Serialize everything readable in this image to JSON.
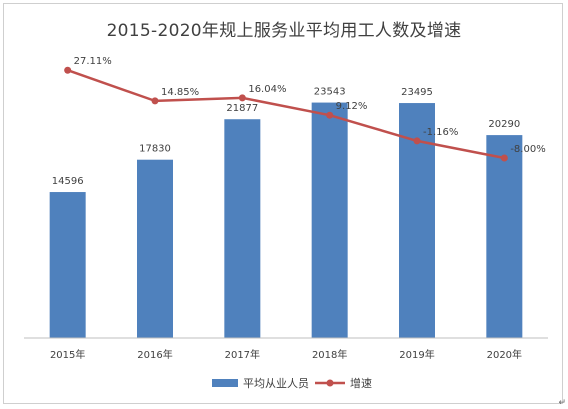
{
  "chart_data": {
    "type": "bar",
    "title": "2015-2020年规上服务业平均用工人数及增速",
    "categories": [
      "2015年",
      "2016年",
      "2017年",
      "2018年",
      "2019年",
      "2020年"
    ],
    "series": [
      {
        "name": "平均从业人员",
        "type": "bar",
        "values": [
          14596,
          17830,
          21877,
          23543,
          23495,
          20290
        ],
        "labels": [
          "14596",
          "17830",
          "21877",
          "23543",
          "23495",
          "20290"
        ],
        "color": "#4f81bd",
        "axis": "primary"
      },
      {
        "name": "增速",
        "type": "line",
        "values": [
          27.11,
          14.85,
          16.04,
          9.12,
          -1.16,
          -8.0
        ],
        "labels": [
          "27.11%",
          "14.85%",
          "16.04%",
          "9.12%",
          "-1.16%",
          "-8.00%"
        ],
        "color": "#c0504d",
        "axis": "secondary"
      }
    ],
    "ylim": [
      0,
      30000
    ],
    "y2lim": [
      -80,
      40
    ],
    "grid": false,
    "legend": "bottom-center"
  }
}
